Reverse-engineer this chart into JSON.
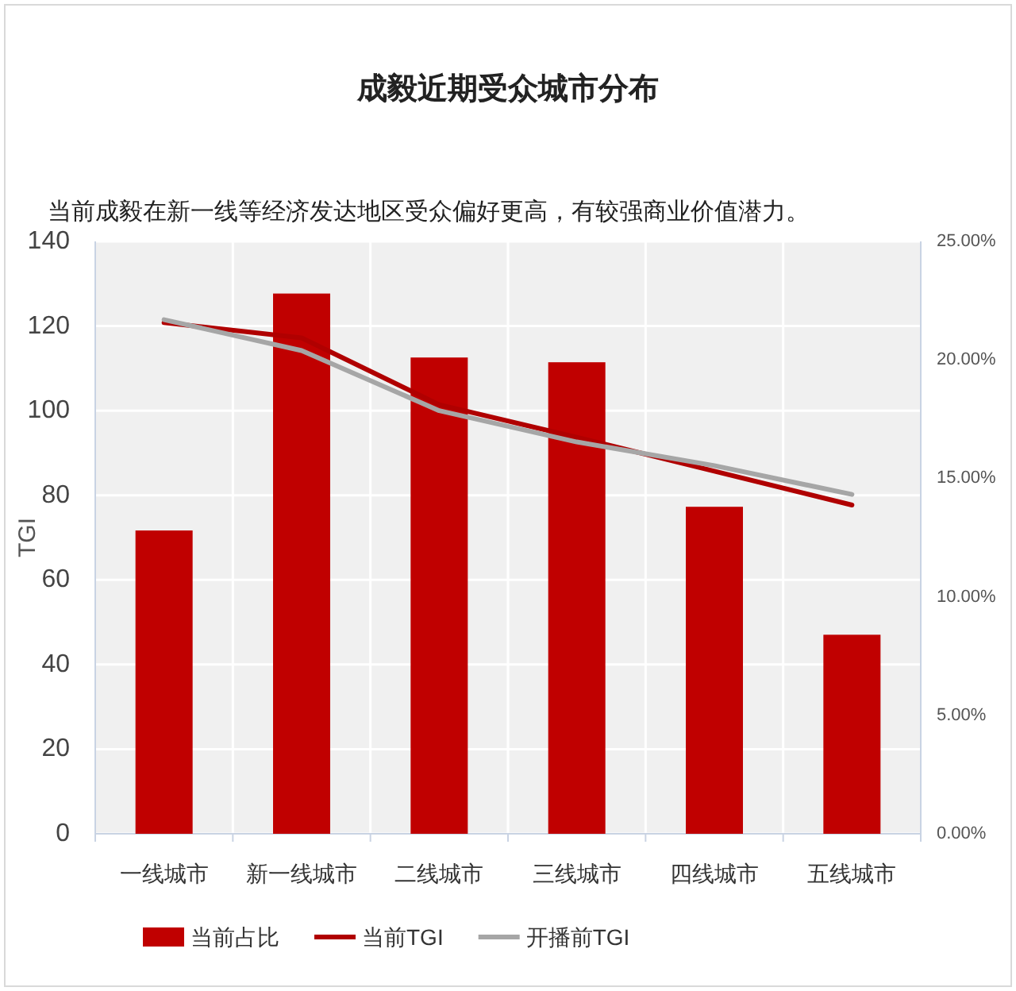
{
  "chart_data": {
    "type": "bar",
    "title": "成毅近期受众城市分布",
    "subtitle": "当前成毅在新一线等经济发达地区受众偏好更高，有较强商业价值潜力。",
    "ylabel": "TGI",
    "categories": [
      "一线城市",
      "新一线城市",
      "二线城市",
      "三线城市",
      "四线城市",
      "五线城市"
    ],
    "series": [
      {
        "name": "当前占比",
        "axis": "y2",
        "color": "#c00000",
        "values": [
          12.8,
          22.8,
          20.1,
          19.9,
          13.8,
          8.4
        ]
      },
      {
        "name": "当前TGI",
        "type": "line",
        "color": "#b00000",
        "values": [
          120.8,
          117.2,
          101.4,
          93.7,
          85.7,
          77.7
        ]
      },
      {
        "name": "开播前TGI",
        "type": "line",
        "color": "#a6a6a6",
        "values": [
          121.5,
          114.2,
          100,
          92.6,
          87,
          80.2
        ]
      }
    ],
    "ylim": [
      0,
      140
    ],
    "yticks": [
      0,
      20,
      40,
      60,
      80,
      100,
      120,
      140
    ],
    "y2lim": [
      0,
      25
    ],
    "y2ticks": [
      {
        "value": 0,
        "label": "0.00%"
      },
      {
        "value": 5,
        "label": "5.00%"
      },
      {
        "value": 10,
        "label": "10.00%"
      },
      {
        "value": 15,
        "label": "15.00%"
      },
      {
        "value": 20,
        "label": "20.00%"
      },
      {
        "value": 25,
        "label": "25.00%"
      }
    ],
    "grid": true,
    "legend": "bottom left",
    "marker": "none",
    "line_style": "solid"
  }
}
